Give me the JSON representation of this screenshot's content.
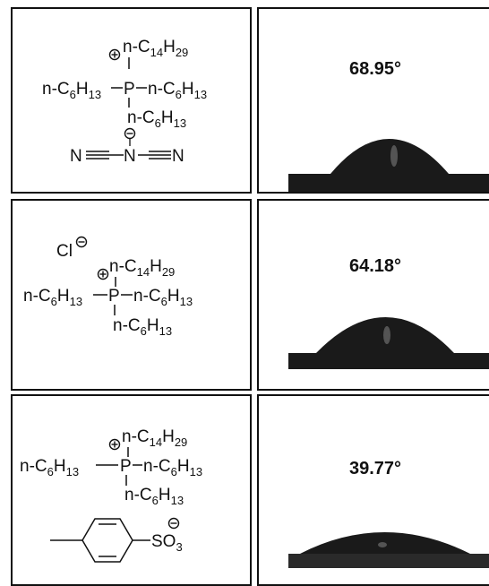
{
  "panels": [
    {
      "cation": {
        "top_chain": [
          "n-C",
          "14",
          "H",
          "29"
        ],
        "left_chain": [
          "n-C",
          "6",
          "H",
          "13"
        ],
        "right_chain": [
          "n-C",
          "6",
          "H",
          "13"
        ],
        "bottom_chain": [
          "n-C",
          "6",
          "H",
          "13"
        ],
        "center_atom": "P"
      },
      "anion": {
        "atoms": [
          "N",
          "N",
          "N"
        ]
      },
      "contact_angle": "68.95°"
    },
    {
      "cation": {
        "top_chain": [
          "n-C",
          "14",
          "H",
          "29"
        ],
        "left_chain": [
          "n-C",
          "6",
          "H",
          "13"
        ],
        "right_chain": [
          "n-C",
          "6",
          "H",
          "13"
        ],
        "bottom_chain": [
          "n-C",
          "6",
          "H",
          "13"
        ],
        "center_atom": "P"
      },
      "anion": {
        "label": "Cl"
      },
      "contact_angle": "64.18°"
    },
    {
      "cation": {
        "top_chain": [
          "n-C",
          "14",
          "H",
          "29"
        ],
        "left_chain": [
          "n-C",
          "6",
          "H",
          "13"
        ],
        "right_chain": [
          "n-C",
          "6",
          "H",
          "13"
        ],
        "bottom_chain": [
          "n-C",
          "6",
          "H",
          "13"
        ],
        "center_atom": "P"
      },
      "anion": {
        "group": [
          "SO",
          "3"
        ]
      },
      "contact_angle": "39.77°"
    }
  ],
  "colors": {
    "ink": "#111111",
    "droplet": "#1a1a1a",
    "background": "#ffffff"
  }
}
